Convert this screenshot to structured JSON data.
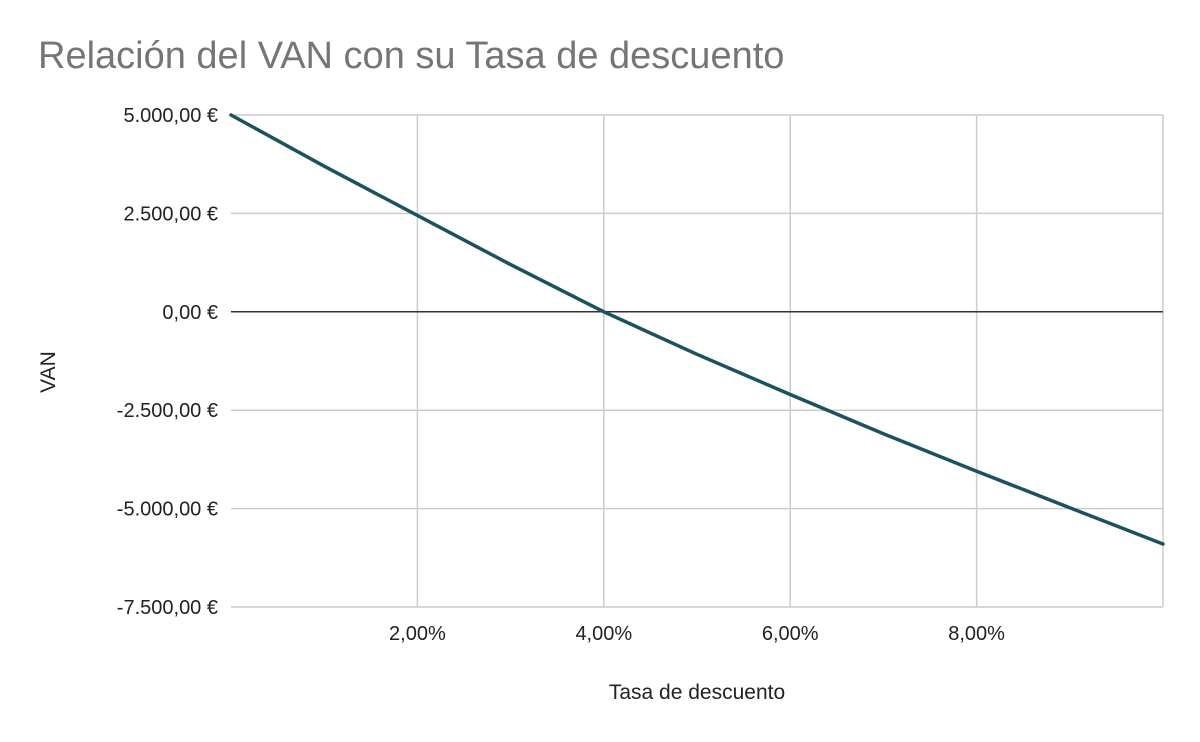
{
  "chart_data": {
    "type": "line",
    "title": "Relación del VAN con su Tasa de descuento",
    "xlabel": "Tasa de descuento",
    "ylabel": "VAN",
    "x_unit": "percent",
    "xlim": [
      0,
      10
    ],
    "ylim": [
      -7500,
      5000
    ],
    "x_ticks": [
      2,
      4,
      6,
      8
    ],
    "x_tick_labels": [
      "2,00%",
      "4,00%",
      "6,00%",
      "8,00%"
    ],
    "y_ticks": [
      5000,
      2500,
      0,
      -2500,
      -5000,
      -7500
    ],
    "y_tick_labels": [
      "5.000,00 €",
      "2.500,00 €",
      "0,00 €",
      "-2.500,00 €",
      "-5.000,00 €",
      "-7.500,00 €"
    ],
    "grid": true,
    "legend": "none",
    "series": [
      {
        "x": [
          0,
          1,
          2,
          3,
          4,
          5,
          6,
          7,
          8,
          9,
          10
        ],
        "y": [
          5000,
          3700,
          2450,
          1200,
          0,
          -1080,
          -2100,
          -3100,
          -4050,
          -4980,
          -5900
        ]
      }
    ],
    "colors": {
      "line": "#1b525c",
      "grid": "#cccccc",
      "zero_line": "#333333"
    }
  }
}
